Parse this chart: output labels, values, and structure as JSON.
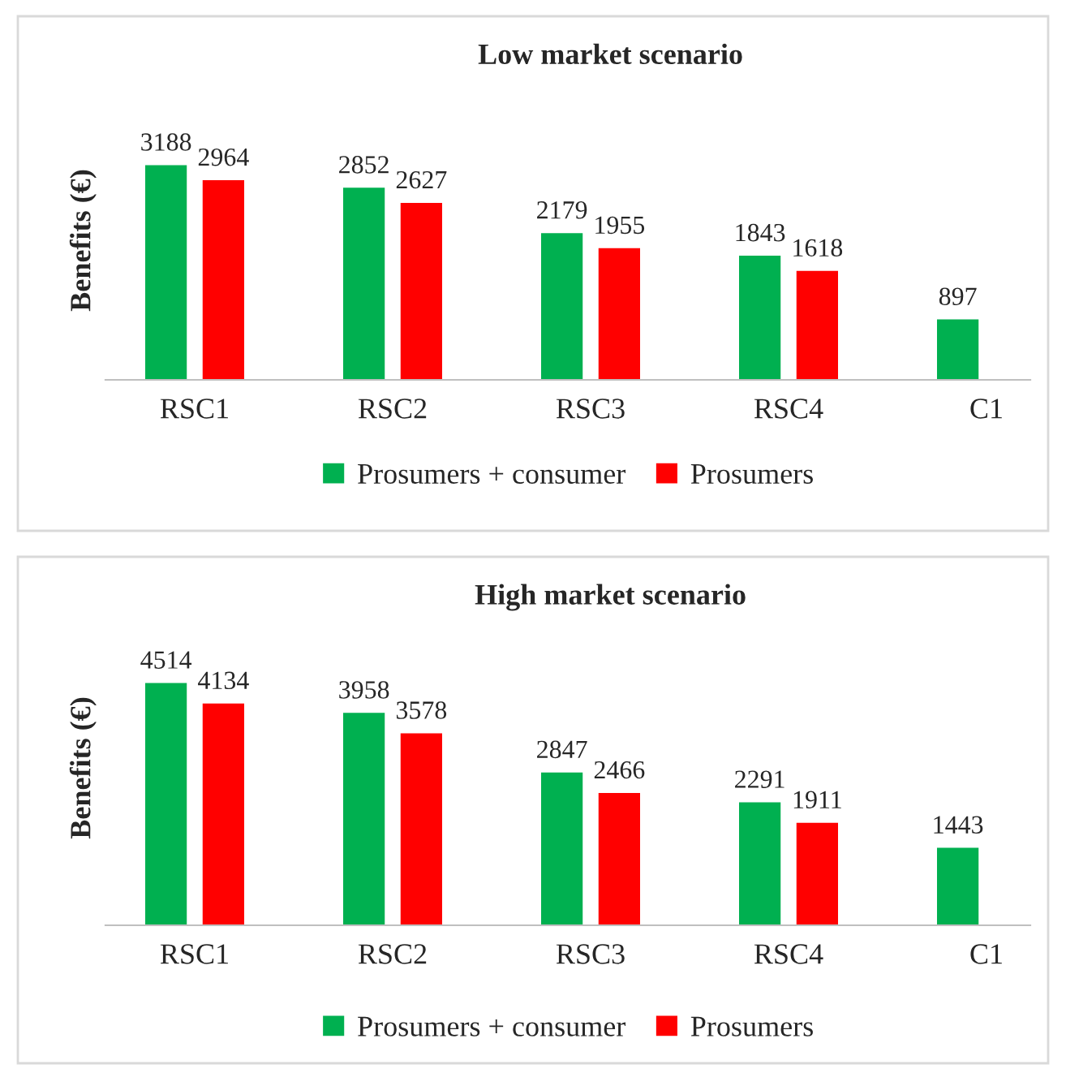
{
  "chart_data": [
    {
      "type": "bar",
      "title": "Low market scenario",
      "ylabel": "Benefits (€)",
      "categories": [
        "RSC1",
        "RSC2",
        "RSC3",
        "RSC4",
        "C1"
      ],
      "series": [
        {
          "name": "Prosumers + consumer",
          "color": "#00b050",
          "values": [
            3188,
            2852,
            2179,
            1843,
            897
          ]
        },
        {
          "name": "Prosumers",
          "color": "#ff0000",
          "values": [
            2964,
            2627,
            1955,
            1618,
            null
          ]
        }
      ],
      "data_labels": true,
      "legend": "bottom",
      "tick_labels": "x",
      "grid": false
    },
    {
      "type": "bar",
      "title": "High market scenario",
      "ylabel": "Benefits (€)",
      "categories": [
        "RSC1",
        "RSC2",
        "RSC3",
        "RSC4",
        "C1"
      ],
      "series": [
        {
          "name": "Prosumers + consumer",
          "color": "#00b050",
          "values": [
            4514,
            3958,
            2847,
            2291,
            1443
          ]
        },
        {
          "name": "Prosumers",
          "color": "#ff0000",
          "values": [
            4134,
            3578,
            2466,
            1911,
            null
          ]
        }
      ],
      "data_labels": true,
      "legend": "bottom",
      "tick_labels": "x",
      "grid": false
    }
  ]
}
